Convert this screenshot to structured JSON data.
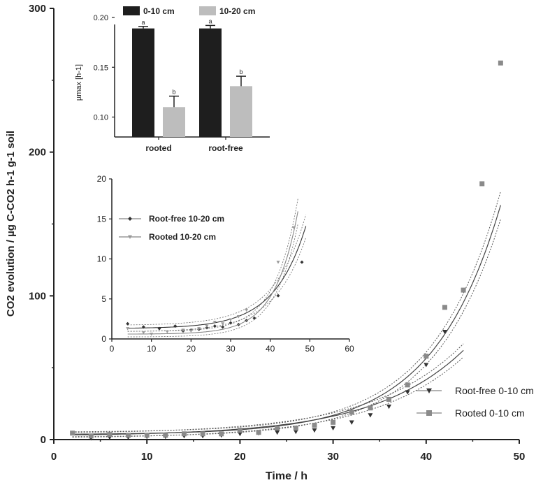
{
  "chart_data": [
    {
      "id": "main",
      "type": "scatter",
      "xlabel": "Time / h",
      "ylabel": "CO2 evolution / µg C-CO2 h-1 g-1 soil",
      "xlim": [
        0,
        50
      ],
      "ylim": [
        0,
        300
      ],
      "x_ticks": [
        "0",
        "10",
        "20",
        "30",
        "40",
        "50"
      ],
      "y_ticks": [
        "0",
        "100",
        "200",
        "300"
      ],
      "legend_position": "bottom-right",
      "series": [
        {
          "name": "Root-free 0-10 cm",
          "marker": "triangle-down",
          "color": "#333333",
          "fit": {
            "a": 0.6,
            "b": 2.5,
            "k": 0.1045
          },
          "x": [
            4,
            6,
            8,
            10,
            12,
            14,
            16,
            18,
            20,
            22,
            24,
            26,
            28,
            30,
            32,
            34,
            36,
            38,
            40,
            42,
            44
          ],
          "y": [
            1,
            1.5,
            1.5,
            2,
            2,
            2.5,
            2.5,
            3,
            4,
            4.5,
            5,
            5.5,
            6.5,
            8,
            12,
            17,
            23,
            33,
            52,
            75,
            104
          ]
        },
        {
          "name": "Rooted 0-10 cm",
          "marker": "square",
          "color": "#8a8a8a",
          "fit": {
            "a": 0.215,
            "b": 3.5,
            "k": 0.1377
          },
          "x": [
            2,
            4,
            6,
            8,
            10,
            12,
            14,
            16,
            18,
            20,
            22,
            24,
            26,
            28,
            30,
            32,
            34,
            36,
            38,
            40,
            42,
            44,
            46,
            48
          ],
          "y": [
            4.5,
            2.5,
            3.5,
            3,
            3,
            3,
            4,
            4,
            4,
            6.5,
            5,
            8,
            8,
            10,
            12,
            19,
            22,
            28,
            38,
            58,
            92,
            104,
            178,
            262
          ]
        }
      ]
    },
    {
      "id": "inset-curves",
      "type": "scatter",
      "xlim": [
        0,
        60
      ],
      "ylim": [
        0,
        20
      ],
      "x_ticks": [
        "0",
        "10",
        "20",
        "30",
        "40",
        "50",
        "60"
      ],
      "y_ticks": [
        "0",
        "5",
        "10",
        "15",
        "20"
      ],
      "legend_position": "top-left",
      "series": [
        {
          "name": "Root-free 10-20 cm",
          "marker": "diamond",
          "color": "#333333",
          "fit": {
            "a": 0.028,
            "b": 1.3,
            "k": 0.125
          },
          "x": [
            4,
            8,
            12,
            16,
            18,
            20,
            22,
            24,
            26,
            28,
            30,
            32,
            34,
            36,
            42,
            48
          ],
          "y": [
            1.9,
            1.5,
            1.3,
            1.6,
            1.0,
            1.1,
            1.2,
            1.4,
            1.6,
            1.5,
            2.0,
            1.8,
            2.3,
            2.6,
            5.4,
            9.6
          ]
        },
        {
          "name": "Rooted 10-20 cm",
          "marker": "triangle-down",
          "color": "#9a9a9a",
          "fit": {
            "a": 0.0052,
            "b": 0.6,
            "k": 0.17
          },
          "x": [
            4,
            8,
            10,
            14,
            18,
            20,
            22,
            24,
            26,
            28,
            30,
            32,
            34,
            42,
            46
          ],
          "y": [
            1.3,
            0.8,
            0.6,
            0.9,
            1.1,
            1.0,
            1.3,
            1.6,
            2.1,
            1.9,
            2.4,
            2.8,
            3.6,
            9.6,
            13.9
          ]
        }
      ]
    },
    {
      "id": "inset-bars",
      "type": "bar",
      "ylabel": "µmax [h-1]",
      "ylim": [
        0.08,
        0.2
      ],
      "y_ticks": [
        "0.10",
        "0.15",
        "0.20"
      ],
      "categories": [
        "rooted",
        "root-free"
      ],
      "legend_position": "top",
      "series": [
        {
          "name": "0-10 cm",
          "color": "#1e1e1e",
          "values": [
            0.189,
            0.189
          ],
          "errors": [
            0.002,
            0.003
          ],
          "letters": [
            "a",
            "a"
          ]
        },
        {
          "name": "10-20 cm",
          "color": "#bdbdbd",
          "values": [
            0.11,
            0.131
          ],
          "errors": [
            0.011,
            0.01
          ],
          "letters": [
            "b",
            "b"
          ]
        }
      ]
    }
  ]
}
